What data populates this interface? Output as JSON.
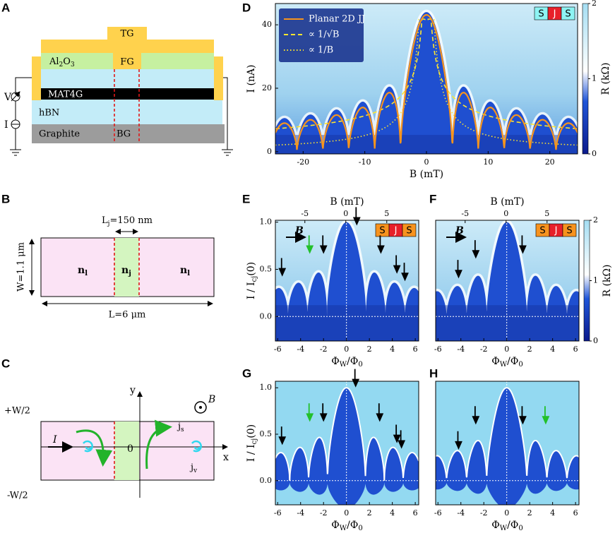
{
  "labels": [
    "A",
    "B",
    "C",
    "D",
    "E",
    "F",
    "G",
    "H"
  ],
  "panel_a": {
    "tg": "TG",
    "al2o3": {
      "parts": [
        "Al",
        "2",
        "O",
        "3"
      ]
    },
    "fg": "FG",
    "mat4g": "MAT4G",
    "hbn": "hBN",
    "graphite": "Graphite",
    "bg": "BG",
    "v": "V",
    "i": "I"
  },
  "panel_b": {
    "lj": {
      "parts": [
        "L",
        "j",
        "=150 nm"
      ]
    },
    "w": "W=1.1 μm",
    "l": "L=6 μm",
    "nl": {
      "parts": [
        "n",
        "l"
      ]
    },
    "nj": {
      "parts": [
        "n",
        "j"
      ]
    }
  },
  "panel_c": {
    "top": "+W/2",
    "bottom": "-W/2",
    "y": "y",
    "x": "x",
    "origin": "0",
    "current": "I",
    "js": {
      "parts": [
        "j",
        "s"
      ]
    },
    "jv": {
      "parts": [
        "j",
        "v"
      ]
    },
    "field": "B"
  },
  "panel_d": {
    "type": "heatmap",
    "xlabel": "B (mT)",
    "ylabel": "I (nA)",
    "xlim": [
      -24.5,
      24.5
    ],
    "ylim": [
      -0.7,
      46.7
    ],
    "xticks": [
      -20,
      -10,
      0,
      10,
      20
    ],
    "yticks": [
      0,
      20,
      40
    ],
    "colorbar": {
      "label": "R (kΩ)",
      "lim": [
        0,
        2
      ],
      "ticks": [
        0,
        1,
        2
      ]
    },
    "legend": [
      {
        "name": "Planar 2D JJ",
        "color": "#f7941d"
      },
      {
        "name": "∝ 1/√B",
        "color": "#ffe62e"
      },
      {
        "name": "∝ 1/B",
        "color": "#ffe62e"
      }
    ],
    "badge": {
      "texts": [
        "S",
        "J",
        "S"
      ],
      "colors": [
        "#8ef3f3",
        "#e8202a",
        "#8ef3f3"
      ]
    }
  },
  "panel_e": {
    "type": "heatmap",
    "xlabel": {
      "parts": [
        "Φ",
        "W",
        "/Φ",
        "0"
      ]
    },
    "ylabel": {
      "parts": [
        "I / I",
        "cj",
        "(0)"
      ]
    },
    "top_label": "B (mT)",
    "xlim": [
      -6.2,
      6.3
    ],
    "ylim": [
      -0.26,
      1.02
    ],
    "xticks": [
      -6,
      -4,
      -2,
      0,
      2,
      4,
      6
    ],
    "yticks": [
      {
        "value": 0,
        "label": "0.0"
      },
      {
        "value": 0.5,
        "label": "0.5"
      },
      {
        "value": 1,
        "label": "1.0"
      }
    ],
    "top_xlim": [
      -8.6,
      8.9
    ],
    "top_xticks": [
      -5,
      0,
      5
    ],
    "zero_lines": true,
    "field_label": "B",
    "badge": {
      "texts": [
        "S",
        "J",
        "S"
      ],
      "colors": [
        "#f7931e",
        "#e8202a",
        "#f7931e"
      ]
    },
    "arrows": [
      {
        "x": -5.6,
        "y": 0.44,
        "color": "#000000"
      },
      {
        "x": -3.2,
        "y": 0.68,
        "color": "#22c02a"
      },
      {
        "x": -2.0,
        "y": 0.68,
        "color": "#000000"
      },
      {
        "x": 0.9,
        "y": 0.98,
        "color": "#000000"
      },
      {
        "x": 3.0,
        "y": 0.68,
        "color": "#000000"
      },
      {
        "x": 4.4,
        "y": 0.47,
        "color": "#000000"
      },
      {
        "x": 5.1,
        "y": 0.39,
        "color": "#000000"
      }
    ]
  },
  "panel_f": {
    "type": "heatmap",
    "xlabel": {
      "parts": [
        "Φ",
        "W",
        "/Φ",
        "0"
      ]
    },
    "top_label": "B (mT)",
    "xlim": [
      -6.2,
      6.3
    ],
    "ylim": [
      -0.26,
      1.02
    ],
    "xticks": [
      -6,
      -4,
      -2,
      0,
      2,
      4,
      6
    ],
    "top_xlim": [
      -8.6,
      8.9
    ],
    "top_xticks": [
      -5,
      0,
      5
    ],
    "zero_lines": true,
    "field_label": "B",
    "badge": {
      "texts": [
        "S",
        "J",
        "S"
      ],
      "colors": [
        "#f7931e",
        "#e8202a",
        "#f7931e"
      ]
    },
    "colorbar": {
      "label": "R (kΩ)",
      "lim": [
        0,
        2
      ],
      "ticks": [
        0,
        1,
        2
      ]
    },
    "arrows": [
      {
        "x": -4.2,
        "y": 0.42,
        "color": "#000000"
      },
      {
        "x": -2.7,
        "y": 0.63,
        "color": "#000000"
      },
      {
        "x": 1.4,
        "y": 0.68,
        "color": "#000000"
      }
    ]
  },
  "panel_g": {
    "type": "simulation",
    "xlabel": {
      "parts": [
        "Φ",
        "W",
        "/Φ",
        "0"
      ]
    },
    "ylabel": {
      "parts": [
        "I / I",
        "cj",
        "(0)"
      ]
    },
    "xlim": [
      -6.2,
      6.3
    ],
    "ylim": [
      -0.26,
      1.07
    ],
    "xticks": [
      -6,
      -4,
      -2,
      0,
      2,
      4,
      6
    ],
    "yticks": [
      {
        "value": 0,
        "label": "0.0"
      },
      {
        "value": 0.5,
        "label": "0.5"
      },
      {
        "value": 1,
        "label": "1.0"
      }
    ],
    "zero_lines": true,
    "arrows": [
      {
        "x": -5.6,
        "y": 0.4,
        "color": "#000000"
      },
      {
        "x": -3.2,
        "y": 0.65,
        "color": "#22c02a"
      },
      {
        "x": -2.0,
        "y": 0.65,
        "color": "#000000"
      },
      {
        "x": 0.8,
        "y": 1.02,
        "color": "#000000"
      },
      {
        "x": 2.9,
        "y": 0.65,
        "color": "#000000"
      },
      {
        "x": 4.4,
        "y": 0.42,
        "color": "#000000"
      },
      {
        "x": 4.8,
        "y": 0.36,
        "color": "#000000"
      }
    ]
  },
  "panel_h": {
    "type": "simulation",
    "xlabel": {
      "parts": [
        "Φ",
        "W",
        "/Φ",
        "0"
      ]
    },
    "xlim": [
      -6.2,
      6.3
    ],
    "ylim": [
      -0.26,
      1.07
    ],
    "xticks": [
      -6,
      -4,
      -2,
      0,
      2,
      4,
      6
    ],
    "zero_lines": true,
    "arrows": [
      {
        "x": -4.2,
        "y": 0.35,
        "color": "#000000"
      },
      {
        "x": -2.7,
        "y": 0.62,
        "color": "#000000"
      },
      {
        "x": 1.4,
        "y": 0.62,
        "color": "#000000"
      },
      {
        "x": 3.4,
        "y": 0.62,
        "color": "#22c02a"
      }
    ]
  }
}
